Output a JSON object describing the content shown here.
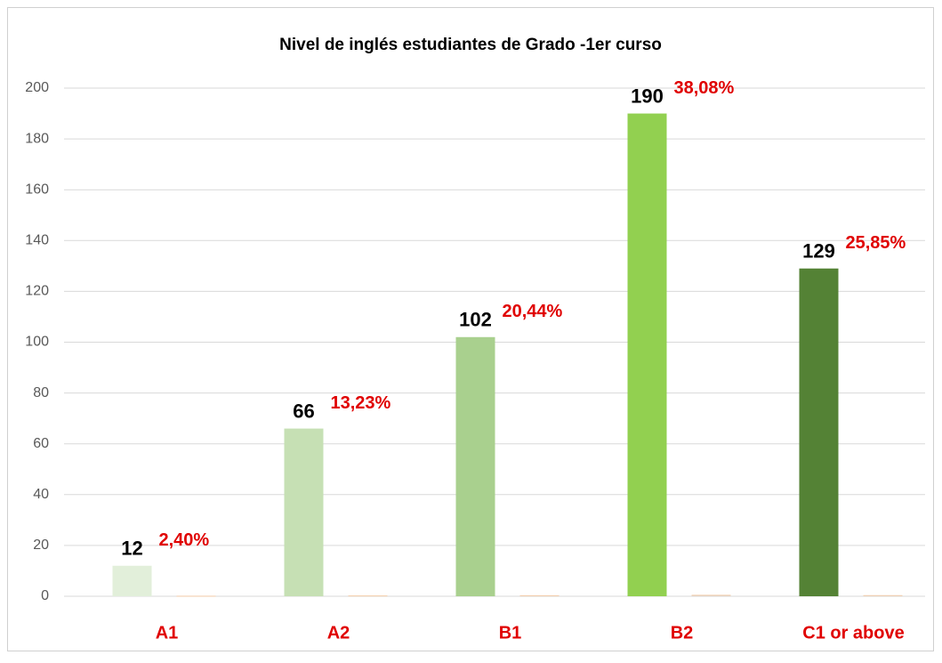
{
  "chart_data": {
    "type": "bar",
    "title": "Nivel de inglés estudiantes de Grado -1er curso",
    "categories": [
      "A1",
      "A2",
      "B1",
      "B2",
      "C1 or above"
    ],
    "series": [
      {
        "colors": [
          "#e2efda",
          "#c6e0b4",
          "#a9d08e",
          "#92d050",
          "#548235"
        ],
        "values": [
          12,
          66,
          102,
          190,
          129
        ]
      },
      {
        "color": "#f4cca8",
        "values": [
          0.024,
          0.1323,
          0.2044,
          0.3808,
          0.2585
        ],
        "value_labels": [
          "2,40%",
          "13,23%",
          "20,44%",
          "38,08%",
          "25,85%"
        ]
      }
    ],
    "ylim": [
      0,
      200
    ],
    "yticks": [
      0,
      20,
      40,
      60,
      80,
      100,
      120,
      140,
      160,
      180,
      200
    ],
    "grid": true
  }
}
